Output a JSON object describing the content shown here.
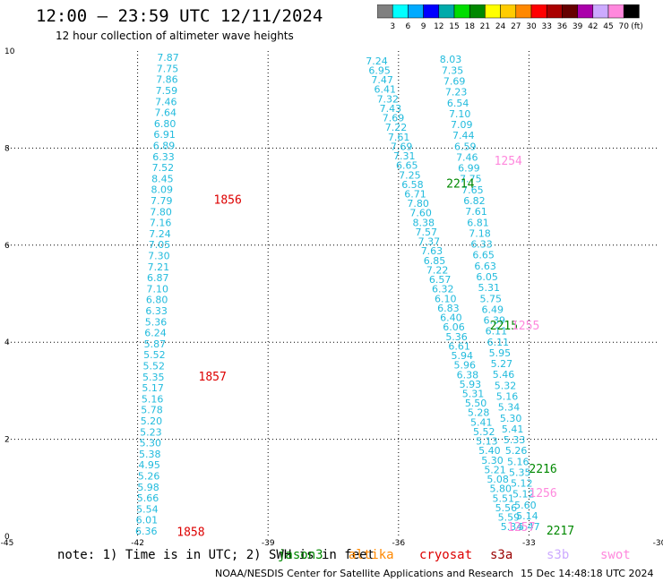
{
  "header": {
    "title": "12:00 – 23:59 UTC 12/11/2024",
    "subtitle": "12 hour collection of altimeter wave heights"
  },
  "colorbar": {
    "colors": [
      "#808080",
      "#00ffff",
      "#00aaff",
      "#0000ff",
      "#00aaaa",
      "#00dd00",
      "#008800",
      "#ffff00",
      "#ffcc00",
      "#ff8800",
      "#ff0000",
      "#aa0000",
      "#660000",
      "#aa00aa",
      "#ccaaff",
      "#ff88dd",
      "#000000"
    ],
    "labels": [
      "3",
      "6",
      "9",
      "12",
      "15",
      "18",
      "21",
      "24",
      "27",
      "30",
      "33",
      "36",
      "39",
      "42",
      "45",
      "70"
    ],
    "unit": "(ft)"
  },
  "chart_data": {
    "type": "scatter",
    "xlim": [
      -45,
      -30
    ],
    "ylim": [
      0,
      10
    ],
    "x_ticks": [
      "-45",
      "-42",
      "-39",
      "-36",
      "-33",
      "-30"
    ],
    "y_ticks": [
      "0",
      "2",
      "4",
      "6",
      "8",
      "10"
    ],
    "grid": true,
    "tracks": [
      {
        "name": "left-track",
        "color": "#22bbdd",
        "start": [
          -41.3,
          9.87
        ],
        "end": [
          -41.8,
          0.11
        ],
        "values": [
          "7.87",
          "7.75",
          "7.86",
          "7.59",
          "7.46",
          "7.64",
          "6.80",
          "6.91",
          "6.89",
          "6.33",
          "7.52",
          "8.45",
          "8.09",
          "7.79",
          "7.80",
          "7.16",
          "7.24",
          "7.05",
          "7.30",
          "7.21",
          "6.87",
          "7.10",
          "6.80",
          "6.33",
          "5.36",
          "6.24",
          "5.87",
          "5.52",
          "5.52",
          "5.35",
          "5.17",
          "5.16",
          "5.78",
          "5.20",
          "5.23",
          "5.30",
          "5.38",
          "4.95",
          "5.26",
          "5.98",
          "5.66",
          "5.54",
          "6.01",
          "6.36"
        ]
      },
      {
        "name": "middle-track",
        "color": "#22bbdd",
        "start": [
          -36.5,
          9.8
        ],
        "end": [
          -33.4,
          0.2
        ],
        "values": [
          "7.24",
          "6.95",
          "7.47",
          "6.41",
          "7.32",
          "7.43",
          "7.69",
          "7.22",
          "7.61",
          "7.69",
          "7.31",
          "6.65",
          "7.25",
          "6.58",
          "6.71",
          "7.80",
          "7.60",
          "8.38",
          "7.57",
          "7.37",
          "7.63",
          "6.85",
          "7.22",
          "6.57",
          "6.32",
          "6.10",
          "6.83",
          "6.40",
          "6.06",
          "5.36",
          "6.61",
          "5.94",
          "5.96",
          "6.38",
          "5.93",
          "5.31",
          "5.50",
          "5.28",
          "5.41",
          "5.52",
          "5.13",
          "5.40",
          "5.30",
          "5.21",
          "5.08",
          "5.80",
          "5.51",
          "5.56",
          "5.59",
          "5.34"
        ]
      },
      {
        "name": "right-track",
        "color": "#22bbdd",
        "start": [
          -34.8,
          9.83
        ],
        "end": [
          -33.0,
          0.2
        ],
        "values": [
          "8.03",
          "7.35",
          "7.69",
          "7.23",
          "6.54",
          "7.10",
          "7.09",
          "7.44",
          "6.59",
          "7.46",
          "6.99",
          "7.75",
          "7.65",
          "6.82",
          "7.61",
          "6.81",
          "7.18",
          "6.33",
          "6.65",
          "6.63",
          "6.05",
          "5.31",
          "5.75",
          "6.49",
          "6.39",
          "6.11",
          "6.11",
          "5.95",
          "5.27",
          "5.46",
          "5.32",
          "5.16",
          "5.34",
          "5.30",
          "5.41",
          "5.33",
          "5.26",
          "5.16",
          "5.35",
          "5.12",
          "5.12",
          "5.60",
          "5.14",
          "5.47"
        ]
      }
    ],
    "annotations": [
      {
        "text": "1856",
        "x": -40.25,
        "y": 6.95,
        "color": "#dd0000"
      },
      {
        "text": "1857",
        "x": -40.6,
        "y": 3.3,
        "color": "#dd0000"
      },
      {
        "text": "1858",
        "x": -41.1,
        "y": 0.1,
        "color": "#dd0000"
      },
      {
        "text": "2214",
        "x": -34.9,
        "y": 7.28,
        "color": "#008800"
      },
      {
        "text": "2215",
        "x": -33.9,
        "y": 4.35,
        "color": "#008800"
      },
      {
        "text": "1255",
        "x": -33.4,
        "y": 4.35,
        "color": "#ff88dd"
      },
      {
        "text": "1254",
        "x": -33.8,
        "y": 7.75,
        "color": "#ff88dd"
      },
      {
        "text": "2216",
        "x": -33.0,
        "y": 1.4,
        "color": "#008800"
      },
      {
        "text": "1256",
        "x": -33.0,
        "y": 0.9,
        "color": "#ff88dd"
      },
      {
        "text": "1257",
        "x": -33.5,
        "y": 0.2,
        "color": "#ff88dd"
      },
      {
        "text": "2217",
        "x": -32.6,
        "y": 0.13,
        "color": "#008800"
      }
    ]
  },
  "note": "note: 1) Time is in UTC; 2) SWH is in feet",
  "legend": [
    {
      "label": "jason3",
      "color": "#008800"
    },
    {
      "label": "altika",
      "color": "#ff8800"
    },
    {
      "label": "cryosat",
      "color": "#dd0000"
    },
    {
      "label": "s3a",
      "color": "#990000"
    },
    {
      "label": "s3b",
      "color": "#ccaaff"
    },
    {
      "label": "swot",
      "color": "#ff88dd"
    }
  ],
  "footer": {
    "left": "NOAA/NESDIS Center for Satellite Applications and Research",
    "right": "15 Dec 14:48:18 UTC 2024"
  }
}
